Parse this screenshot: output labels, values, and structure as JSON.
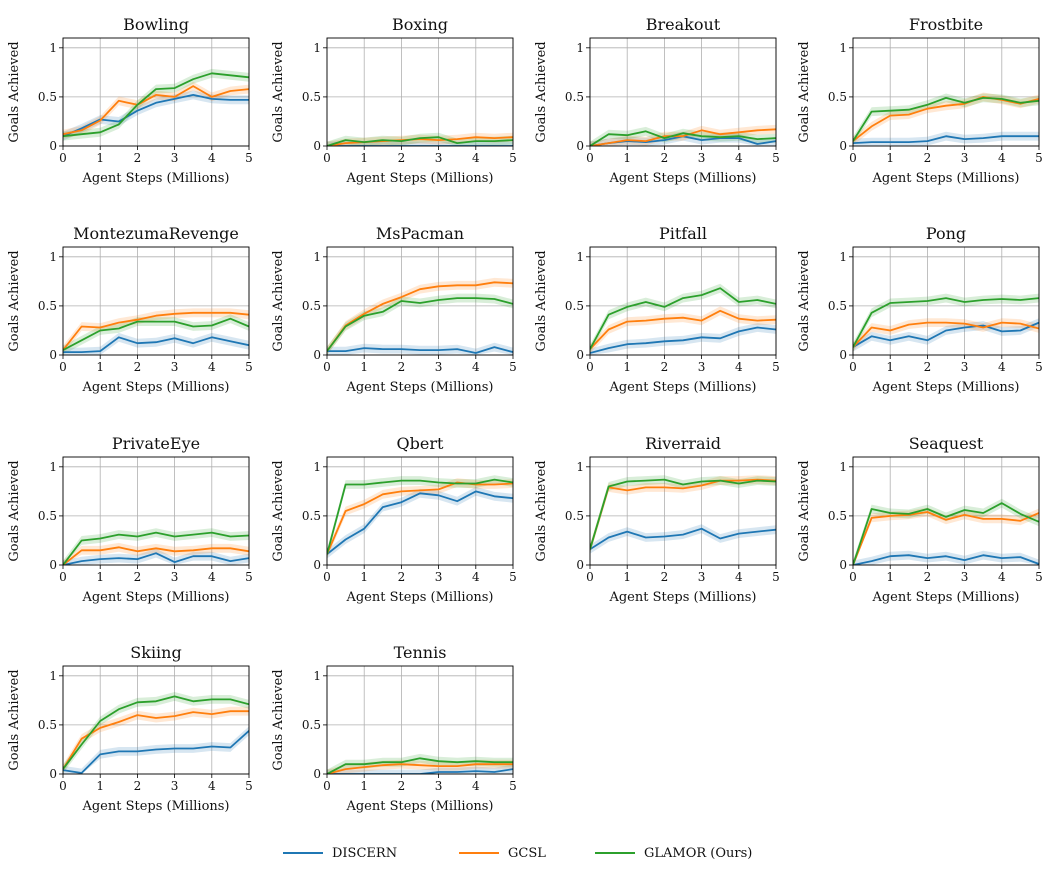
{
  "figure": {
    "legend": {
      "placement": "bottom-center",
      "entries": [
        {
          "name": "DISCERN",
          "color": "#1f77b4"
        },
        {
          "name": "GCSL",
          "color": "#ff7f0e"
        },
        {
          "name": "GLAMOR (Ours)",
          "color": "#2ca02c"
        }
      ]
    }
  },
  "chart_data": [
    {
      "type": "line",
      "title": "Bowling",
      "xlabel": "Agent Steps (Millions)",
      "ylabel": "Goals Achieved",
      "xlim": [
        0,
        5
      ],
      "ylim": [
        0,
        1.1
      ],
      "grid": true,
      "x": [
        0,
        0.5,
        1,
        1.5,
        2,
        2.5,
        3,
        3.5,
        4,
        4.5,
        5
      ],
      "series": [
        {
          "name": "DISCERN",
          "color": "#1f77b4",
          "values": [
            0.1,
            0.18,
            0.27,
            0.25,
            0.36,
            0.44,
            0.48,
            0.52,
            0.48,
            0.47,
            0.47
          ]
        },
        {
          "name": "GCSL",
          "color": "#ff7f0e",
          "values": [
            0.12,
            0.16,
            0.26,
            0.46,
            0.42,
            0.52,
            0.5,
            0.61,
            0.5,
            0.56,
            0.58
          ]
        },
        {
          "name": "GLAMOR (Ours)",
          "color": "#2ca02c",
          "values": [
            0.1,
            0.12,
            0.14,
            0.22,
            0.42,
            0.58,
            0.59,
            0.68,
            0.74,
            0.72,
            0.7
          ]
        }
      ]
    },
    {
      "type": "line",
      "title": "Boxing",
      "xlabel": "Agent Steps (Millions)",
      "ylabel": "Goals Achieved",
      "xlim": [
        0,
        5
      ],
      "ylim": [
        0,
        1.1
      ],
      "grid": true,
      "x": [
        0,
        0.5,
        1,
        1.5,
        2,
        2.5,
        3,
        3.5,
        4,
        4.5,
        5
      ],
      "series": [
        {
          "name": "DISCERN",
          "color": "#1f77b4",
          "values": [
            0.0,
            0.0,
            0.0,
            0.0,
            0.0,
            0.0,
            0.0,
            0.0,
            0.0,
            0.0,
            0.0
          ]
        },
        {
          "name": "GCSL",
          "color": "#ff7f0e",
          "values": [
            0.0,
            0.03,
            0.04,
            0.05,
            0.06,
            0.07,
            0.06,
            0.07,
            0.09,
            0.08,
            0.09
          ]
        },
        {
          "name": "GLAMOR (Ours)",
          "color": "#2ca02c",
          "values": [
            0.0,
            0.06,
            0.04,
            0.06,
            0.05,
            0.08,
            0.09,
            0.03,
            0.05,
            0.05,
            0.06
          ]
        }
      ]
    },
    {
      "type": "line",
      "title": "Breakout",
      "xlabel": "Agent Steps (Millions)",
      "ylabel": "Goals Achieved",
      "xlim": [
        0,
        5
      ],
      "ylim": [
        0,
        1.1
      ],
      "grid": true,
      "x": [
        0,
        0.5,
        1,
        1.5,
        2,
        2.5,
        3,
        3.5,
        4,
        4.5,
        5
      ],
      "series": [
        {
          "name": "DISCERN",
          "color": "#1f77b4",
          "values": [
            0.0,
            0.03,
            0.05,
            0.04,
            0.06,
            0.1,
            0.06,
            0.08,
            0.08,
            0.02,
            0.05
          ]
        },
        {
          "name": "GCSL",
          "color": "#ff7f0e",
          "values": [
            0.0,
            0.03,
            0.06,
            0.05,
            0.1,
            0.1,
            0.16,
            0.12,
            0.14,
            0.16,
            0.17
          ]
        },
        {
          "name": "GLAMOR (Ours)",
          "color": "#2ca02c",
          "values": [
            0.0,
            0.12,
            0.11,
            0.15,
            0.08,
            0.13,
            0.1,
            0.09,
            0.1,
            0.07,
            0.08
          ]
        }
      ]
    },
    {
      "type": "line",
      "title": "Frostbite",
      "xlabel": "Agent Steps (Millions)",
      "ylabel": "Goals Achieved",
      "xlim": [
        0,
        5
      ],
      "ylim": [
        0,
        1.1
      ],
      "grid": true,
      "x": [
        0,
        0.5,
        1,
        1.5,
        2,
        2.5,
        3,
        3.5,
        4,
        4.5,
        5
      ],
      "series": [
        {
          "name": "DISCERN",
          "color": "#1f77b4",
          "values": [
            0.03,
            0.04,
            0.04,
            0.04,
            0.05,
            0.1,
            0.07,
            0.08,
            0.1,
            0.1,
            0.1
          ]
        },
        {
          "name": "GCSL",
          "color": "#ff7f0e",
          "values": [
            0.05,
            0.2,
            0.31,
            0.32,
            0.38,
            0.41,
            0.43,
            0.5,
            0.47,
            0.43,
            0.48
          ]
        },
        {
          "name": "GLAMOR (Ours)",
          "color": "#2ca02c",
          "values": [
            0.05,
            0.35,
            0.36,
            0.37,
            0.42,
            0.49,
            0.44,
            0.49,
            0.48,
            0.44,
            0.46
          ]
        }
      ]
    },
    {
      "type": "line",
      "title": "MontezumaRevenge",
      "xlabel": "Agent Steps (Millions)",
      "ylabel": "Goals Achieved",
      "xlim": [
        0,
        5
      ],
      "ylim": [
        0,
        1.1
      ],
      "grid": true,
      "x": [
        0,
        0.5,
        1,
        1.5,
        2,
        2.5,
        3,
        3.5,
        4,
        4.5,
        5
      ],
      "series": [
        {
          "name": "DISCERN",
          "color": "#1f77b4",
          "values": [
            0.03,
            0.03,
            0.04,
            0.18,
            0.12,
            0.13,
            0.17,
            0.12,
            0.18,
            0.14,
            0.1
          ]
        },
        {
          "name": "GCSL",
          "color": "#ff7f0e",
          "values": [
            0.05,
            0.29,
            0.28,
            0.33,
            0.36,
            0.4,
            0.42,
            0.43,
            0.43,
            0.43,
            0.41
          ]
        },
        {
          "name": "GLAMOR (Ours)",
          "color": "#2ca02c",
          "values": [
            0.05,
            0.15,
            0.25,
            0.27,
            0.34,
            0.34,
            0.34,
            0.29,
            0.3,
            0.37,
            0.29
          ]
        }
      ]
    },
    {
      "type": "line",
      "title": "MsPacman",
      "xlabel": "Agent Steps (Millions)",
      "ylabel": "Goals Achieved",
      "xlim": [
        0,
        5
      ],
      "ylim": [
        0,
        1.1
      ],
      "grid": true,
      "x": [
        0,
        0.5,
        1,
        1.5,
        2,
        2.5,
        3,
        3.5,
        4,
        4.5,
        5
      ],
      "series": [
        {
          "name": "DISCERN",
          "color": "#1f77b4",
          "values": [
            0.04,
            0.04,
            0.07,
            0.06,
            0.06,
            0.05,
            0.05,
            0.06,
            0.02,
            0.08,
            0.03
          ]
        },
        {
          "name": "GCSL",
          "color": "#ff7f0e",
          "values": [
            0.04,
            0.3,
            0.42,
            0.52,
            0.59,
            0.67,
            0.7,
            0.71,
            0.71,
            0.74,
            0.73
          ]
        },
        {
          "name": "GLAMOR (Ours)",
          "color": "#2ca02c",
          "values": [
            0.04,
            0.29,
            0.4,
            0.44,
            0.55,
            0.53,
            0.56,
            0.58,
            0.58,
            0.57,
            0.52
          ]
        }
      ]
    },
    {
      "type": "line",
      "title": "Pitfall",
      "xlabel": "Agent Steps (Millions)",
      "ylabel": "Goals Achieved",
      "xlim": [
        0,
        5
      ],
      "ylim": [
        0,
        1.1
      ],
      "grid": true,
      "x": [
        0,
        0.5,
        1,
        1.5,
        2,
        2.5,
        3,
        3.5,
        4,
        4.5,
        5
      ],
      "series": [
        {
          "name": "DISCERN",
          "color": "#1f77b4",
          "values": [
            0.02,
            0.07,
            0.11,
            0.12,
            0.14,
            0.15,
            0.18,
            0.17,
            0.24,
            0.28,
            0.26
          ]
        },
        {
          "name": "GCSL",
          "color": "#ff7f0e",
          "values": [
            0.06,
            0.26,
            0.34,
            0.35,
            0.37,
            0.38,
            0.35,
            0.45,
            0.37,
            0.35,
            0.36
          ]
        },
        {
          "name": "GLAMOR (Ours)",
          "color": "#2ca02c",
          "values": [
            0.06,
            0.41,
            0.49,
            0.54,
            0.49,
            0.58,
            0.61,
            0.68,
            0.54,
            0.56,
            0.52
          ]
        }
      ]
    },
    {
      "type": "line",
      "title": "Pong",
      "xlabel": "Agent Steps (Millions)",
      "ylabel": "Goals Achieved",
      "xlim": [
        0,
        5
      ],
      "ylim": [
        0,
        1.1
      ],
      "grid": true,
      "x": [
        0,
        0.5,
        1,
        1.5,
        2,
        2.5,
        3,
        3.5,
        4,
        4.5,
        5
      ],
      "series": [
        {
          "name": "DISCERN",
          "color": "#1f77b4",
          "values": [
            0.08,
            0.19,
            0.15,
            0.19,
            0.15,
            0.25,
            0.28,
            0.3,
            0.24,
            0.25,
            0.33
          ]
        },
        {
          "name": "GCSL",
          "color": "#ff7f0e",
          "values": [
            0.08,
            0.28,
            0.25,
            0.31,
            0.33,
            0.33,
            0.32,
            0.28,
            0.33,
            0.32,
            0.27
          ]
        },
        {
          "name": "GLAMOR (Ours)",
          "color": "#2ca02c",
          "values": [
            0.08,
            0.43,
            0.53,
            0.54,
            0.55,
            0.58,
            0.54,
            0.56,
            0.57,
            0.56,
            0.58
          ]
        }
      ]
    },
    {
      "type": "line",
      "title": "PrivateEye",
      "xlabel": "Agent Steps (Millions)",
      "ylabel": "Goals Achieved",
      "xlim": [
        0,
        5
      ],
      "ylim": [
        0,
        1.1
      ],
      "grid": true,
      "x": [
        0,
        0.5,
        1,
        1.5,
        2,
        2.5,
        3,
        3.5,
        4,
        4.5,
        5
      ],
      "series": [
        {
          "name": "DISCERN",
          "color": "#1f77b4",
          "values": [
            0.0,
            0.04,
            0.06,
            0.07,
            0.06,
            0.12,
            0.03,
            0.09,
            0.09,
            0.04,
            0.07
          ]
        },
        {
          "name": "GCSL",
          "color": "#ff7f0e",
          "values": [
            0.0,
            0.15,
            0.15,
            0.18,
            0.14,
            0.17,
            0.14,
            0.15,
            0.17,
            0.17,
            0.14
          ]
        },
        {
          "name": "GLAMOR (Ours)",
          "color": "#2ca02c",
          "values": [
            0.0,
            0.25,
            0.27,
            0.31,
            0.29,
            0.33,
            0.29,
            0.31,
            0.33,
            0.29,
            0.3
          ]
        }
      ]
    },
    {
      "type": "line",
      "title": "Qbert",
      "xlabel": "Agent Steps (Millions)",
      "ylabel": "Goals Achieved",
      "xlim": [
        0,
        5
      ],
      "ylim": [
        0,
        1.1
      ],
      "grid": true,
      "x": [
        0,
        0.5,
        1,
        1.5,
        2,
        2.5,
        3,
        3.5,
        4,
        4.5,
        5
      ],
      "series": [
        {
          "name": "DISCERN",
          "color": "#1f77b4",
          "values": [
            0.11,
            0.26,
            0.37,
            0.59,
            0.64,
            0.73,
            0.71,
            0.65,
            0.75,
            0.7,
            0.68
          ]
        },
        {
          "name": "GCSL",
          "color": "#ff7f0e",
          "values": [
            0.11,
            0.55,
            0.62,
            0.72,
            0.75,
            0.76,
            0.77,
            0.84,
            0.82,
            0.82,
            0.83
          ]
        },
        {
          "name": "GLAMOR (Ours)",
          "color": "#2ca02c",
          "values": [
            0.11,
            0.82,
            0.82,
            0.84,
            0.86,
            0.86,
            0.84,
            0.83,
            0.83,
            0.87,
            0.84
          ]
        }
      ]
    },
    {
      "type": "line",
      "title": "Riverraid",
      "xlabel": "Agent Steps (Millions)",
      "ylabel": "Goals Achieved",
      "xlim": [
        0,
        5
      ],
      "ylim": [
        0,
        1.1
      ],
      "grid": true,
      "x": [
        0,
        0.5,
        1,
        1.5,
        2,
        2.5,
        3,
        3.5,
        4,
        4.5,
        5
      ],
      "series": [
        {
          "name": "DISCERN",
          "color": "#1f77b4",
          "values": [
            0.16,
            0.28,
            0.34,
            0.28,
            0.29,
            0.31,
            0.37,
            0.27,
            0.32,
            0.34,
            0.36
          ]
        },
        {
          "name": "GCSL",
          "color": "#ff7f0e",
          "values": [
            0.16,
            0.79,
            0.76,
            0.79,
            0.79,
            0.78,
            0.81,
            0.86,
            0.86,
            0.87,
            0.86
          ]
        },
        {
          "name": "GLAMOR (Ours)",
          "color": "#2ca02c",
          "values": [
            0.16,
            0.8,
            0.85,
            0.86,
            0.87,
            0.82,
            0.85,
            0.86,
            0.83,
            0.86,
            0.85
          ]
        }
      ]
    },
    {
      "type": "line",
      "title": "Seaquest",
      "xlabel": "Agent Steps (Millions)",
      "ylabel": "Goals Achieved",
      "xlim": [
        0,
        5
      ],
      "ylim": [
        0,
        1.1
      ],
      "grid": true,
      "x": [
        0,
        0.5,
        1,
        1.5,
        2,
        2.5,
        3,
        3.5,
        4,
        4.5,
        5
      ],
      "series": [
        {
          "name": "DISCERN",
          "color": "#1f77b4",
          "values": [
            0.0,
            0.04,
            0.09,
            0.1,
            0.07,
            0.09,
            0.05,
            0.1,
            0.07,
            0.08,
            0.01
          ]
        },
        {
          "name": "GCSL",
          "color": "#ff7f0e",
          "values": [
            0.0,
            0.48,
            0.5,
            0.51,
            0.54,
            0.46,
            0.51,
            0.47,
            0.47,
            0.45,
            0.53
          ]
        },
        {
          "name": "GLAMOR (Ours)",
          "color": "#2ca02c",
          "values": [
            0.0,
            0.57,
            0.53,
            0.52,
            0.57,
            0.49,
            0.56,
            0.53,
            0.63,
            0.52,
            0.44
          ]
        }
      ]
    },
    {
      "type": "line",
      "title": "Skiing",
      "xlabel": "Agent Steps (Millions)",
      "ylabel": "Goals Achieved",
      "xlim": [
        0,
        5
      ],
      "ylim": [
        0,
        1.1
      ],
      "grid": true,
      "x": [
        0,
        0.5,
        1,
        1.5,
        2,
        2.5,
        3,
        3.5,
        4,
        4.5,
        5
      ],
      "series": [
        {
          "name": "DISCERN",
          "color": "#1f77b4",
          "values": [
            0.04,
            0.01,
            0.2,
            0.23,
            0.23,
            0.25,
            0.26,
            0.26,
            0.28,
            0.27,
            0.44
          ]
        },
        {
          "name": "GCSL",
          "color": "#ff7f0e",
          "values": [
            0.05,
            0.36,
            0.47,
            0.53,
            0.6,
            0.57,
            0.59,
            0.63,
            0.61,
            0.64,
            0.64
          ]
        },
        {
          "name": "GLAMOR (Ours)",
          "color": "#2ca02c",
          "values": [
            0.05,
            0.3,
            0.54,
            0.66,
            0.73,
            0.74,
            0.79,
            0.74,
            0.76,
            0.76,
            0.71
          ]
        }
      ]
    },
    {
      "type": "line",
      "title": "Tennis",
      "xlabel": "Agent Steps (Millions)",
      "ylabel": "Goals Achieved",
      "xlim": [
        0,
        5
      ],
      "ylim": [
        0,
        1.1
      ],
      "grid": true,
      "x": [
        0,
        0.5,
        1,
        1.5,
        2,
        2.5,
        3,
        3.5,
        4,
        4.5,
        5
      ],
      "series": [
        {
          "name": "DISCERN",
          "color": "#1f77b4",
          "values": [
            0.0,
            0.0,
            0.0,
            0.0,
            0.0,
            0.0,
            0.02,
            0.02,
            0.03,
            0.02,
            0.05
          ]
        },
        {
          "name": "GCSL",
          "color": "#ff7f0e",
          "values": [
            0.0,
            0.05,
            0.07,
            0.09,
            0.1,
            0.09,
            0.08,
            0.08,
            0.1,
            0.1,
            0.1
          ]
        },
        {
          "name": "GLAMOR (Ours)",
          "color": "#2ca02c",
          "values": [
            0.0,
            0.1,
            0.1,
            0.12,
            0.12,
            0.16,
            0.13,
            0.12,
            0.13,
            0.12,
            0.12
          ]
        }
      ]
    }
  ]
}
